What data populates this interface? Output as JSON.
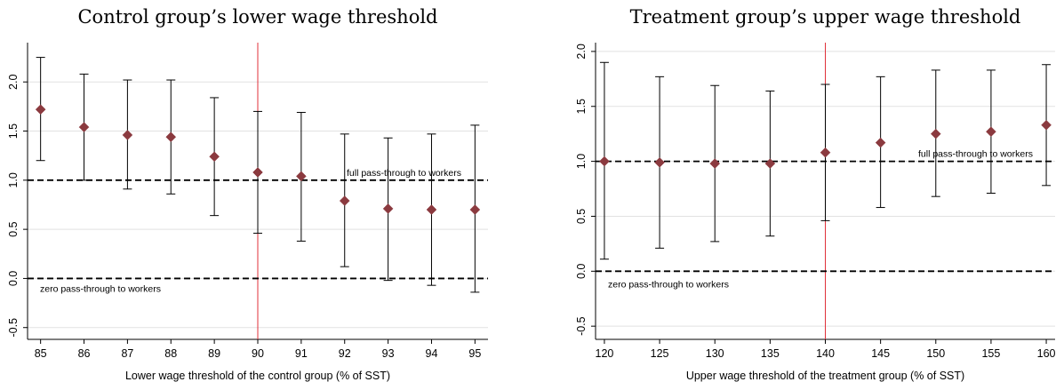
{
  "chart_data": [
    {
      "type": "scatter",
      "title": "Control group’s lower wage threshold",
      "xlabel": "Lower wage threshold of the control group (% of SST)",
      "ylabel": "",
      "x": [
        85,
        86,
        87,
        88,
        89,
        90,
        91,
        92,
        93,
        94,
        95
      ],
      "series": [
        {
          "values": [
            1.72,
            1.54,
            1.46,
            1.44,
            1.24,
            1.08,
            1.04,
            0.79,
            0.71,
            0.7,
            0.7
          ],
          "ci_low": [
            1.2,
            1.0,
            0.91,
            0.86,
            0.64,
            0.46,
            0.38,
            0.12,
            -0.02,
            -0.07,
            -0.14
          ],
          "ci_high": [
            2.25,
            2.08,
            2.02,
            2.02,
            1.84,
            1.7,
            1.69,
            1.47,
            1.43,
            1.47,
            1.56
          ],
          "color": "#8B3A3F"
        }
      ],
      "xticks": [
        "85",
        "86",
        "87",
        "88",
        "89",
        "90",
        "91",
        "92",
        "93",
        "94",
        "95"
      ],
      "yticks": [
        "-0.5",
        "0.0",
        "0.5",
        "1.0",
        "1.5",
        "2.0"
      ],
      "xlim": [
        84.7,
        95.3
      ],
      "ylim": [
        -0.62,
        2.4
      ],
      "grid": true,
      "reference_lines": [
        {
          "y": 1.0,
          "label": "full pass-through to workers",
          "style": "dashed"
        },
        {
          "y": 0.0,
          "label": "zero pass-through to workers",
          "style": "dashed"
        }
      ],
      "vertical_line": {
        "x": 90,
        "color": "#e0303a"
      }
    },
    {
      "type": "scatter",
      "title": "Treatment group’s upper wage threshold",
      "xlabel": "Upper wage threshold of the treatment group (% of SST)",
      "ylabel": "",
      "x": [
        120,
        125,
        130,
        135,
        140,
        145,
        150,
        155,
        160
      ],
      "series": [
        {
          "values": [
            1.0,
            0.99,
            0.98,
            0.98,
            1.08,
            1.17,
            1.25,
            1.27,
            1.33
          ],
          "ci_low": [
            0.11,
            0.21,
            0.27,
            0.32,
            0.46,
            0.58,
            0.68,
            0.71,
            0.78
          ],
          "ci_high": [
            1.9,
            1.77,
            1.69,
            1.64,
            1.7,
            1.77,
            1.83,
            1.83,
            1.88
          ],
          "color": "#8B3A3F"
        }
      ],
      "xticks": [
        "120",
        "125",
        "130",
        "135",
        "140",
        "145",
        "150",
        "155",
        "160"
      ],
      "yticks": [
        "-0.5",
        "0.0",
        "0.5",
        "1.0",
        "1.5",
        "2.0"
      ],
      "xlim": [
        119.2,
        160.8
      ],
      "ylim": [
        -0.62,
        2.08
      ],
      "grid": true,
      "reference_lines": [
        {
          "y": 1.0,
          "label": "full pass-through to workers",
          "style": "dashed"
        },
        {
          "y": 0.0,
          "label": "zero pass-through to workers",
          "style": "dashed"
        }
      ],
      "vertical_line": {
        "x": 140,
        "color": "#e0303a"
      }
    }
  ]
}
